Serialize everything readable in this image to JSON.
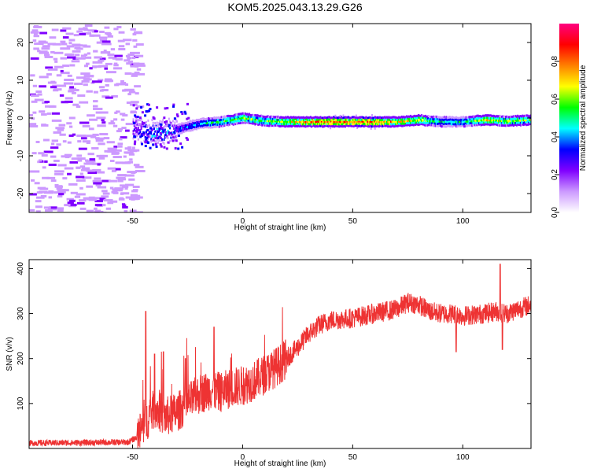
{
  "title": "KOM5.2025.043.13.29.G26",
  "chart_data": [
    {
      "type": "heatmap",
      "xlabel": "Height of straight line (km)",
      "ylabel": "Frequency (Hz)",
      "xlim": [
        -97,
        131
      ],
      "ylim": [
        -25,
        25
      ],
      "xticks": [
        -50,
        0,
        50,
        100
      ],
      "yticks": [
        -20,
        -10,
        0,
        10,
        20
      ],
      "colorbar": {
        "label": "Normalized spectral amplitude",
        "range": [
          0.0,
          1.0
        ],
        "ticks": [
          "0.0",
          "0.2",
          "0.4",
          "0.6",
          "0.8"
        ],
        "tick_values": [
          0.0,
          0.2,
          0.4,
          0.6,
          0.8
        ],
        "colors": [
          "#ffffff",
          "#cc99ff",
          "#8000ff",
          "#0000ff",
          "#00ffff",
          "#00ff00",
          "#ffff00",
          "#ff8000",
          "#ff0000",
          "#ff0080"
        ]
      },
      "ridge": {
        "description_points_x": [
          -48,
          -40,
          -30,
          -20,
          -10,
          0,
          10,
          20,
          30,
          40,
          50,
          60,
          70,
          80,
          90,
          100,
          110,
          120,
          131
        ],
        "frequency_y": [
          -3,
          -4,
          -3,
          -1.5,
          -1,
          0,
          -0.8,
          -1,
          -1,
          -1,
          -1,
          -1,
          -1,
          -0.5,
          -1,
          -1,
          -0.5,
          -0.8,
          -0.5
        ],
        "amplitude": [
          0.3,
          0.45,
          0.35,
          0.45,
          0.55,
          0.65,
          0.6,
          0.7,
          0.8,
          0.85,
          0.85,
          0.85,
          0.75,
          0.7,
          0.5,
          0.5,
          0.7,
          0.65,
          0.6
        ]
      },
      "noise_region_x": [
        -97,
        -48
      ]
    },
    {
      "type": "line",
      "xlabel": "Height of straight line (km)",
      "ylabel": "SNR (v/v)",
      "xlim": [
        -97,
        131
      ],
      "ylim": [
        0,
        420
      ],
      "xticks": [
        -50,
        0,
        50,
        100
      ],
      "yticks": [
        100,
        200,
        300,
        400
      ],
      "color": "#ee3333",
      "trend": {
        "x": [
          -97,
          -70,
          -52,
          -48,
          -45,
          -40,
          -35,
          -30,
          -25,
          -20,
          -15,
          -10,
          -5,
          0,
          5,
          10,
          15,
          20,
          25,
          30,
          35,
          40,
          50,
          60,
          70,
          75,
          80,
          85,
          90,
          95,
          100,
          110,
          115,
          120,
          125,
          131
        ],
        "y": [
          12,
          13,
          14,
          25,
          50,
          90,
          70,
          80,
          100,
          120,
          130,
          125,
          135,
          140,
          150,
          165,
          180,
          200,
          225,
          255,
          275,
          285,
          290,
          300,
          310,
          325,
          320,
          305,
          300,
          300,
          295,
          300,
          305,
          300,
          310,
          320
        ]
      },
      "spikes": [
        {
          "x": -44,
          "y": 305
        },
        {
          "x": -40,
          "y": 210
        },
        {
          "x": -36,
          "y": 215
        },
        {
          "x": -26,
          "y": 200
        },
        {
          "x": -13,
          "y": 270
        },
        {
          "x": 97,
          "y": 215
        },
        {
          "x": 117,
          "y": 410
        },
        {
          "x": 118,
          "y": 220
        }
      ]
    }
  ]
}
